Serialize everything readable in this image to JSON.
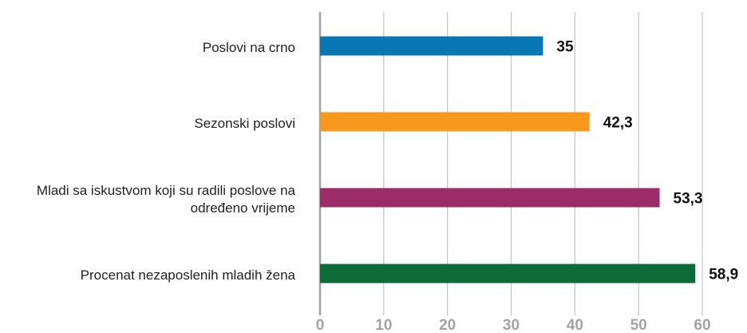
{
  "chart_data": {
    "type": "bar",
    "orientation": "horizontal",
    "categories": [
      "Poslovi na crno",
      "Sezonski poslovi",
      "Mladi sa iskustvom koji su radili poslove na određeno vrijeme",
      "Procenat nezaposlenih mladih žena"
    ],
    "values": [
      35,
      42.3,
      53.3,
      58.9
    ],
    "value_labels": [
      "35",
      "42,3",
      "53,3",
      "58,9"
    ],
    "colors": [
      "#0a77b5",
      "#f7991c",
      "#9b2c68",
      "#0d6b3a"
    ],
    "xlim": [
      0,
      60
    ],
    "xticks": [
      0,
      10,
      20,
      30,
      40,
      50,
      60
    ],
    "grid": true
  }
}
